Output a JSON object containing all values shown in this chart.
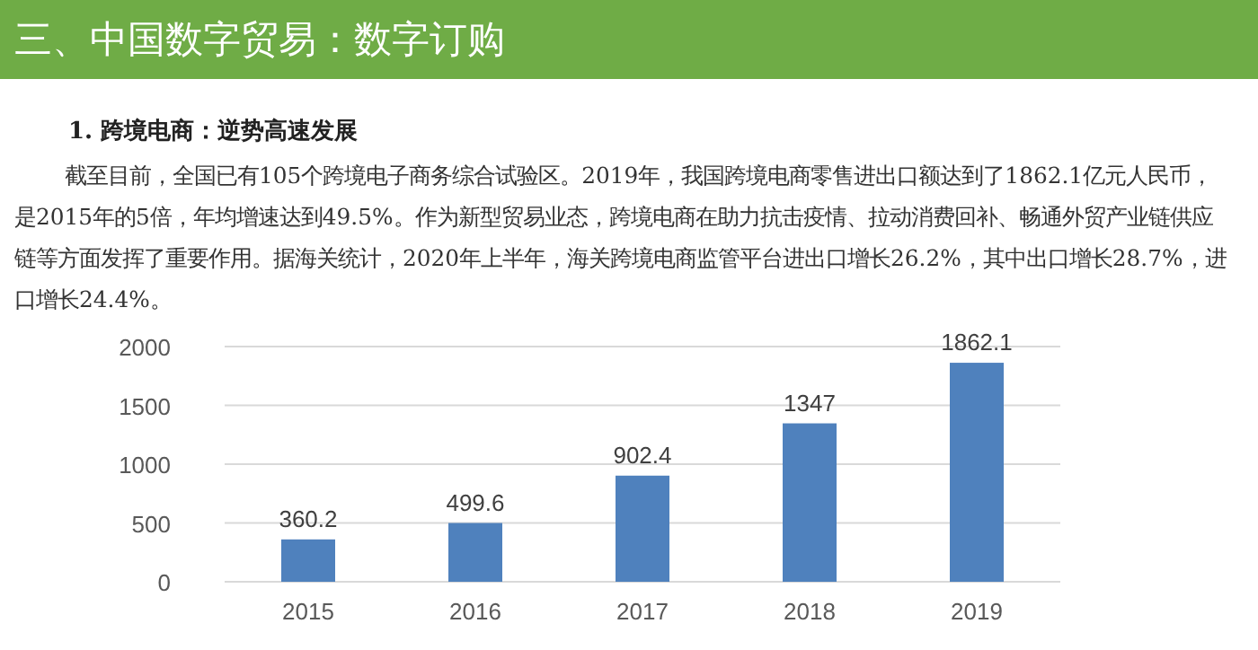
{
  "chart_data": {
    "type": "bar",
    "title": "三、中国数字贸易：数字订购",
    "subtitle": "1. 跨境电商：逆势高速发展",
    "annotations": [
      "截至目前，全国已有105个跨境电子商务综合试验区。2019年，我国跨境电商零售进出口额达到了1862.1亿元人民币，是2015年的5倍，年均增速达到49.5%。作为新型贸易业态，跨境电商在助力抗击疫情、拉动消费回补、畅通外贸产业链供应链等方面发挥了重要作用。据海关统计，2020年上半年，海关跨境电商监管平台进出口增长26.2%，其中出口增长28.7%，进口增长24.4%。"
    ],
    "categories": [
      "2015",
      "2016",
      "2017",
      "2018",
      "2019"
    ],
    "values": [
      360.2,
      499.6,
      902.4,
      1347,
      1862.1
    ],
    "color": "#4f81bd",
    "ylim": [
      0,
      2000
    ],
    "yticks": [
      0,
      500,
      1000,
      1500,
      2000
    ],
    "grid": "y",
    "data_labels": true
  }
}
